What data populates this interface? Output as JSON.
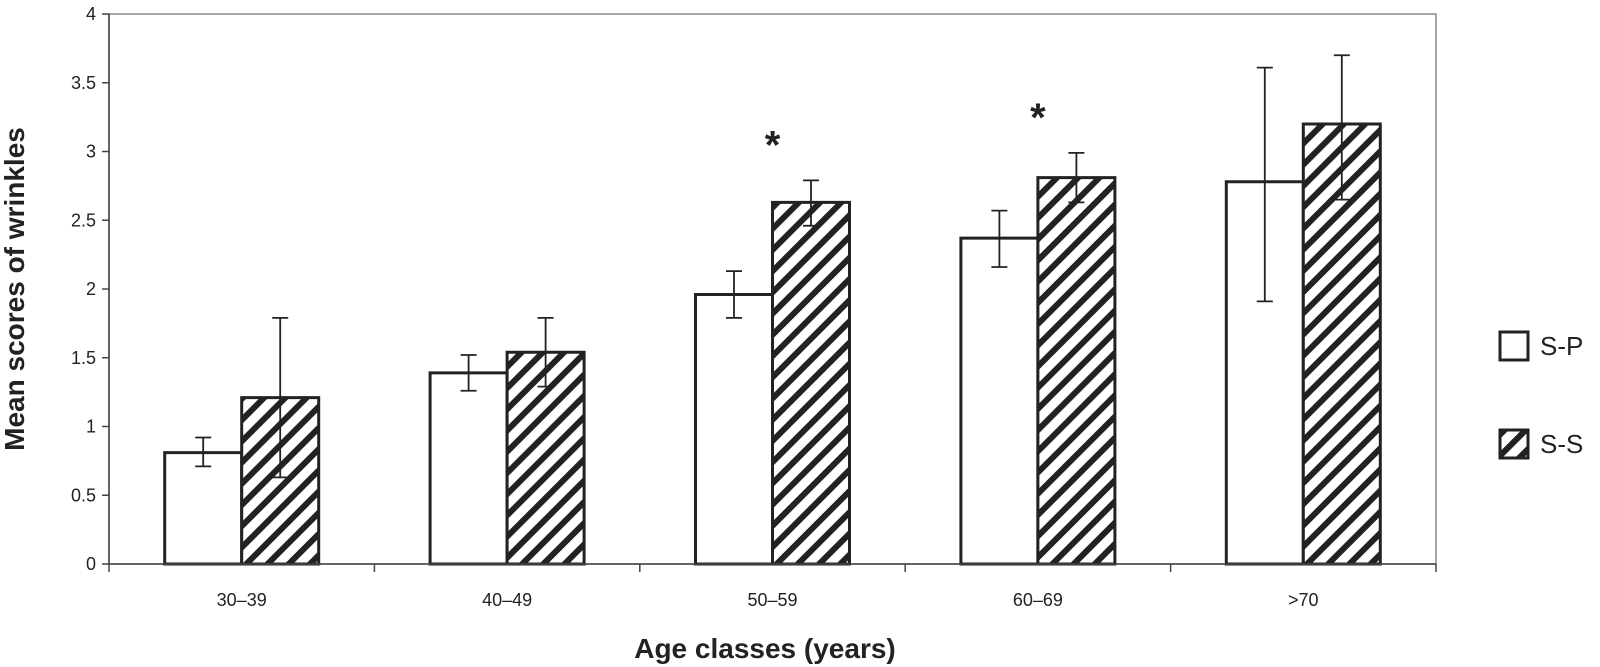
{
  "chart_data": {
    "type": "bar",
    "title": "",
    "xlabel": "Age classes (years)",
    "ylabel": "Mean scores of wrinkles",
    "ylim": [
      0,
      4
    ],
    "yticks": [
      "0",
      "0.5",
      "1",
      "1.5",
      "2",
      "2.5",
      "3",
      "3.5",
      "4"
    ],
    "categories": [
      "30–39",
      "40–49",
      "50–59",
      "60–69",
      ">70"
    ],
    "series": [
      {
        "name": "S-P",
        "pattern": "plain",
        "values": [
          0.81,
          1.39,
          1.96,
          2.37,
          2.78
        ],
        "error_low": [
          0.71,
          1.26,
          1.79,
          2.16,
          1.91
        ],
        "error_high": [
          0.92,
          1.52,
          2.13,
          2.57,
          3.61
        ]
      },
      {
        "name": "S-S",
        "pattern": "hatched",
        "values": [
          1.21,
          1.54,
          2.63,
          2.81,
          3.2
        ],
        "error_low": [
          0.63,
          1.29,
          2.46,
          2.63,
          2.65
        ],
        "error_high": [
          1.79,
          1.79,
          2.79,
          2.99,
          3.7
        ]
      }
    ],
    "annotations": [
      {
        "category": "50–59",
        "text": "*"
      },
      {
        "category": "60–69",
        "text": "*"
      }
    ],
    "legend_position": "right",
    "colors": {
      "stroke": "#222222",
      "fill": "#ffffff",
      "frame": "#888888"
    }
  }
}
